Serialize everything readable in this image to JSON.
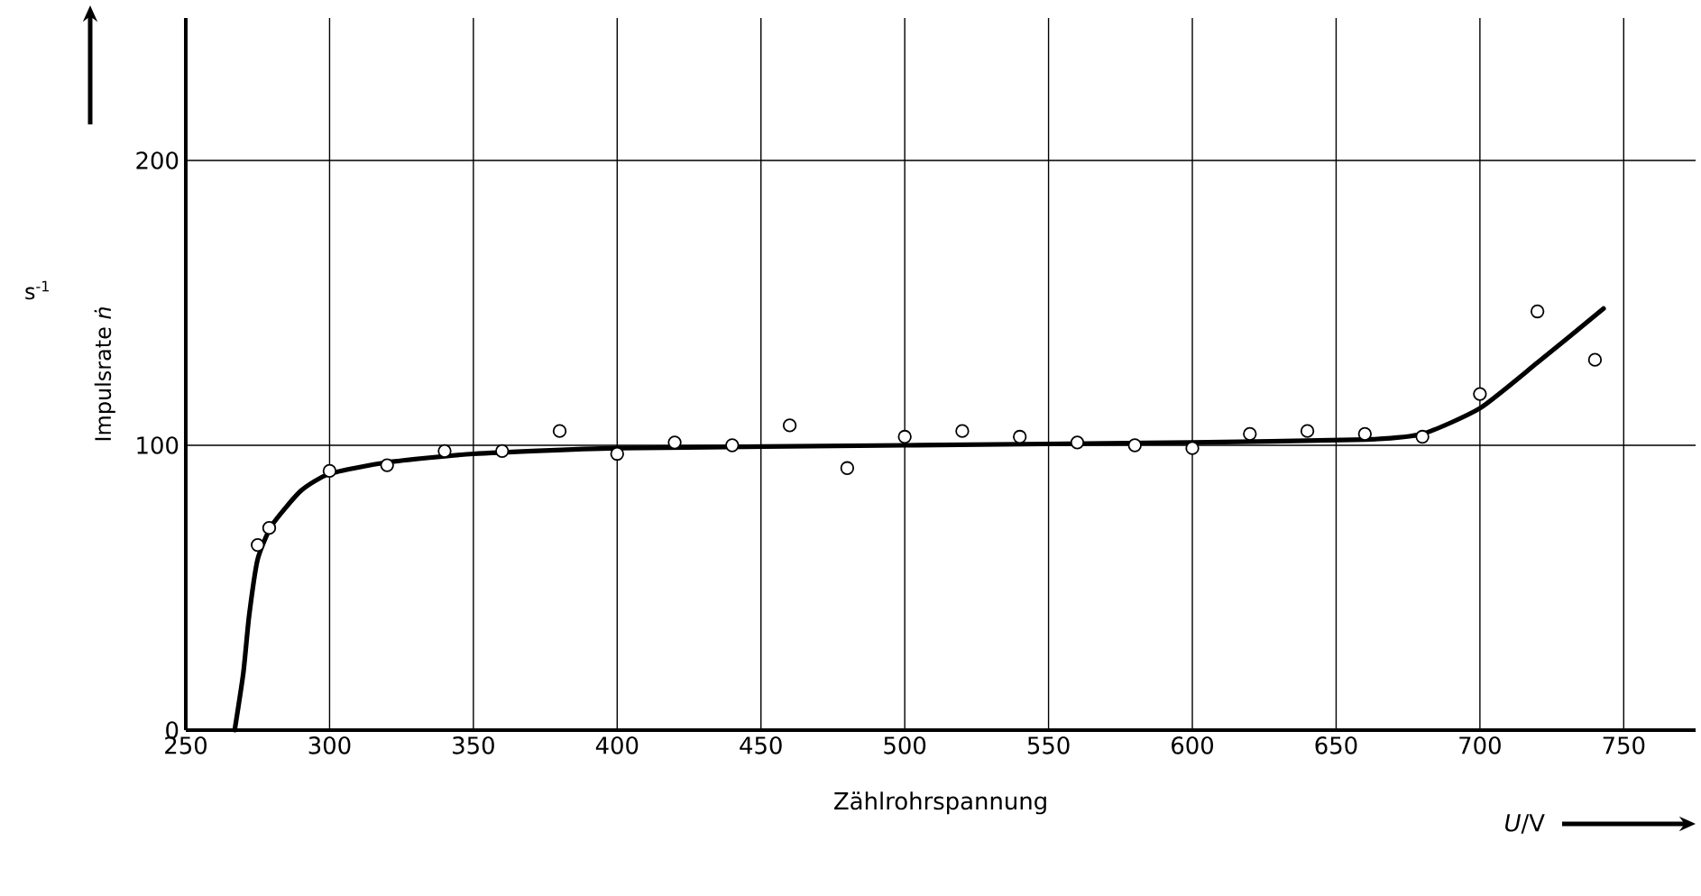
{
  "chart_data": {
    "type": "scatter",
    "xlabel": "Zählrohrspannung",
    "ylabel": "Impulsrate *ṅ*",
    "annotations": [
      "s$^{-1}$",
      "*U*/V"
    ],
    "xlim": [
      250,
      775
    ],
    "ylim": [
      0,
      250
    ],
    "xticks": [
      250,
      300,
      350,
      400,
      450,
      500,
      550,
      600,
      650,
      700,
      750
    ],
    "yticks": [
      0,
      100,
      200
    ],
    "grid": true,
    "marker": "circle",
    "series": [
      {
        "color": "#000000",
        "x": [
          275,
          279,
          300,
          320,
          340,
          360,
          380,
          400,
          420,
          440,
          460,
          480,
          500,
          520,
          540,
          560,
          580,
          600,
          620,
          640,
          660,
          680,
          700,
          720,
          740
        ],
        "values": [
          65,
          71,
          91,
          93,
          98,
          98,
          105,
          97,
          101,
          100,
          107,
          92,
          103,
          105,
          103,
          101,
          100,
          99,
          104,
          105,
          104,
          103,
          118,
          147,
          130
        ]
      },
      {
        "type": "line",
        "color": "#000000",
        "marker": "none",
        "x": [
          267,
          270,
          272,
          275,
          280,
          290,
          300,
          320,
          350,
          400,
          500,
          600,
          660,
          680,
          700,
          720,
          743
        ],
        "values": [
          0,
          20,
          40,
          60,
          72,
          84,
          90,
          94,
          97,
          99,
          100,
          101,
          102,
          104,
          113,
          129,
          148
        ]
      }
    ]
  }
}
